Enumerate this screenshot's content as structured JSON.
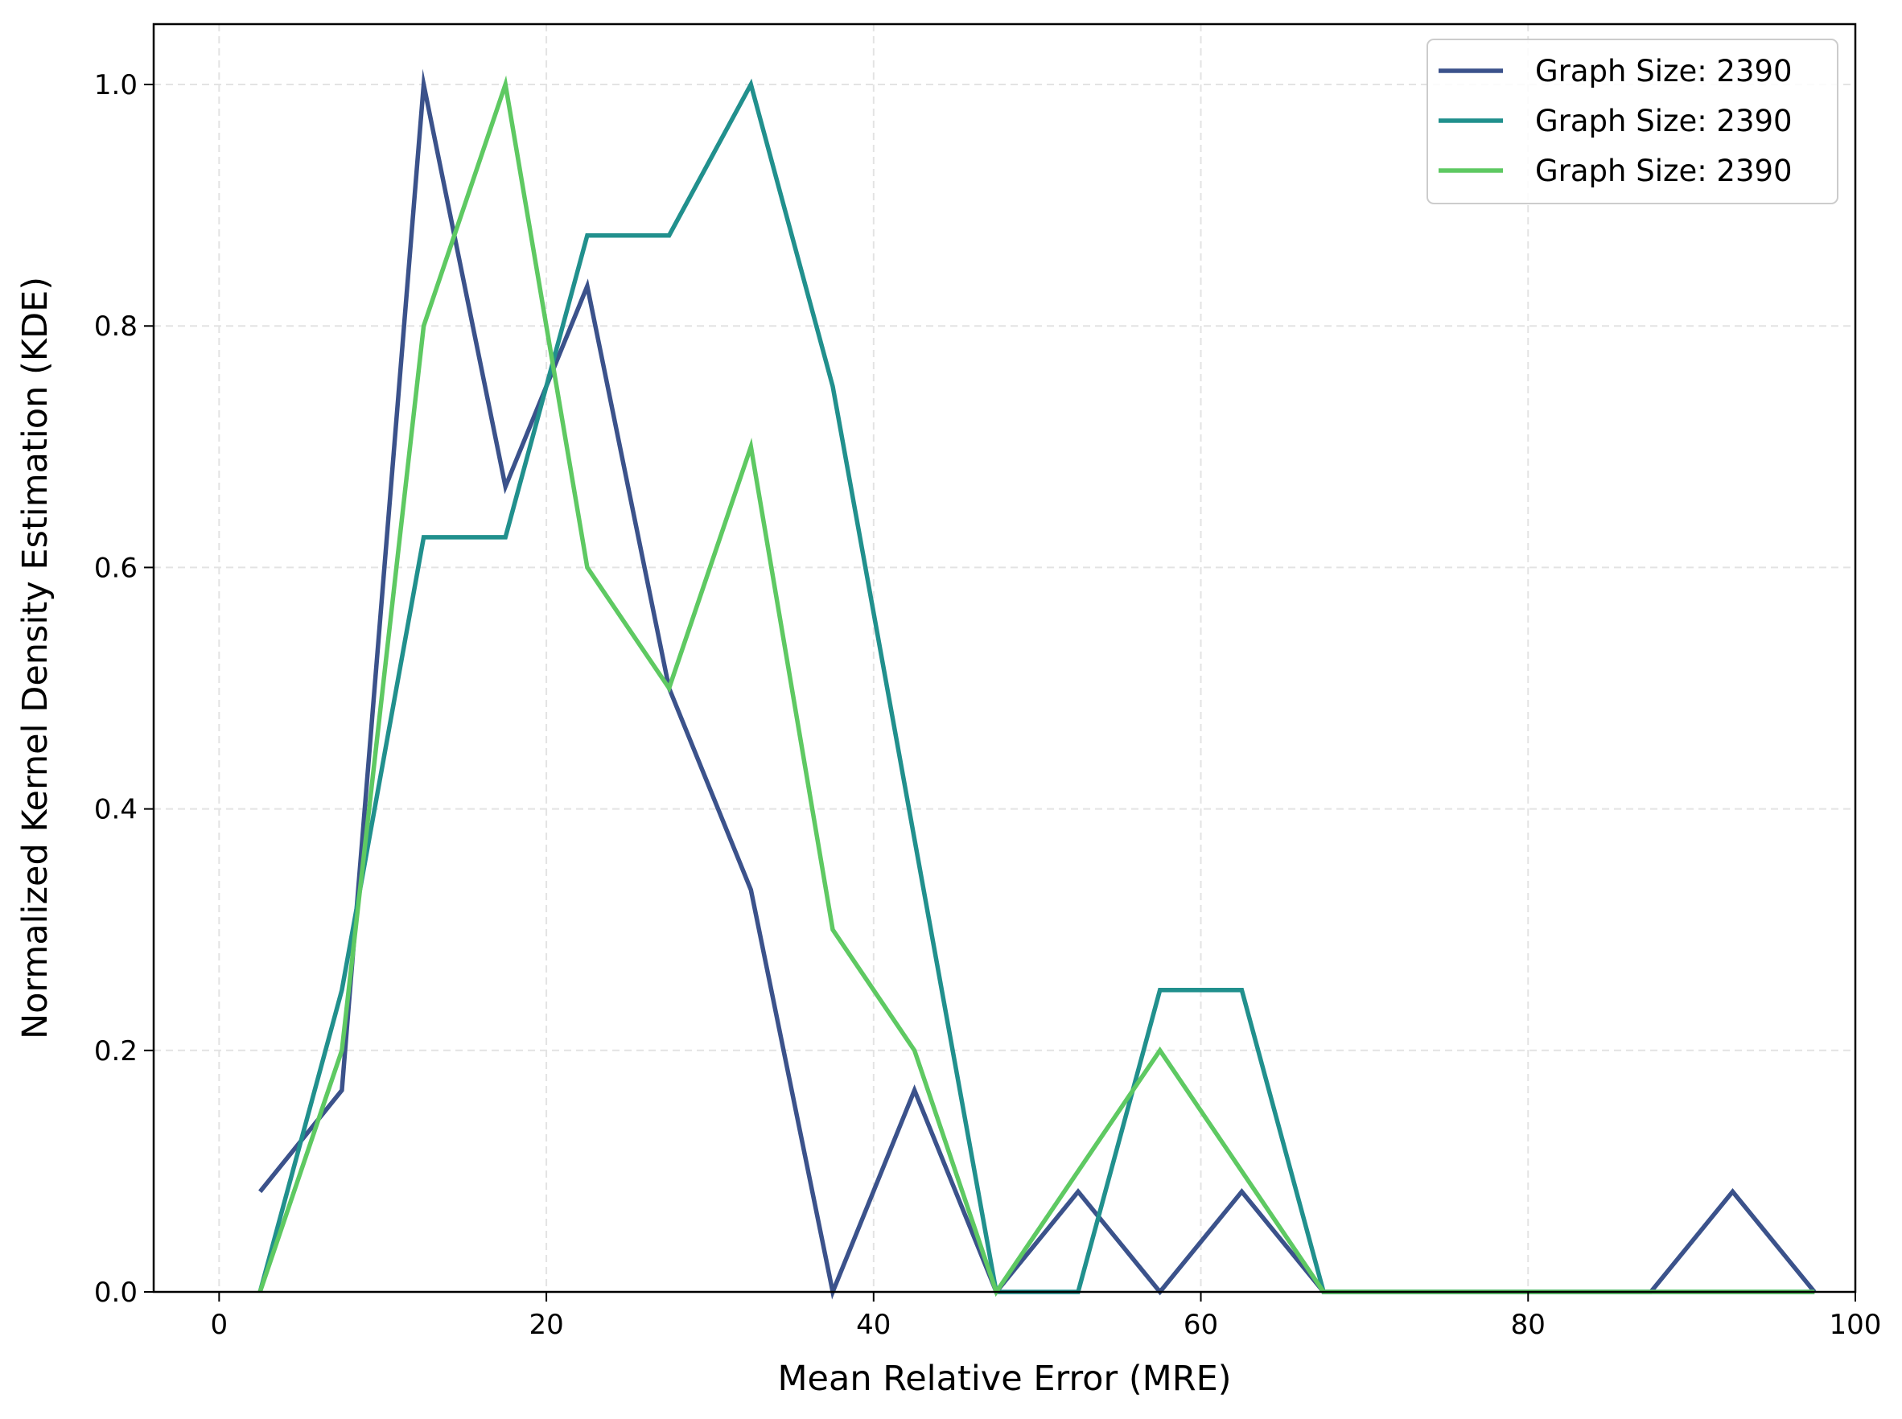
{
  "chart_data": {
    "type": "line",
    "title": "",
    "xlabel": "Mean Relative Error (MRE)",
    "ylabel": "Normalized Kernel Density Estimation (KDE)",
    "xlim": [
      -4,
      100
    ],
    "ylim": [
      0,
      1.05
    ],
    "xticks": [
      0,
      20,
      40,
      60,
      80,
      100
    ],
    "xtick_labels": [
      "0",
      "20",
      "40",
      "60",
      "80",
      "100"
    ],
    "yticks": [
      0.0,
      0.2,
      0.4,
      0.6,
      0.8,
      1.0
    ],
    "ytick_labels": [
      "0.0",
      "0.2",
      "0.4",
      "0.6",
      "0.8",
      "1.0"
    ],
    "grid": true,
    "legend_position": "top-right",
    "x": [
      2.5,
      7.5,
      12.5,
      17.5,
      22.5,
      27.5,
      32.5,
      37.5,
      42.5,
      47.5,
      52.5,
      57.5,
      62.5,
      67.5,
      72.5,
      77.5,
      82.5,
      87.5,
      92.5,
      97.5
    ],
    "series": [
      {
        "name": "Graph Size: 2390",
        "color": "#3b528b",
        "values": [
          0.083,
          0.167,
          1.0,
          0.667,
          0.833,
          0.5,
          0.333,
          0.0,
          0.167,
          0.0,
          0.083,
          0.0,
          0.083,
          0.0,
          0.0,
          0.0,
          0.0,
          0.0,
          0.083,
          0.0
        ]
      },
      {
        "name": "Graph Size: 2390",
        "color": "#21908d",
        "values": [
          0.0,
          0.25,
          0.625,
          0.625,
          0.875,
          0.875,
          1.0,
          0.75,
          0.375,
          0.0,
          0.0,
          0.25,
          0.25,
          0.0,
          0.0,
          0.0,
          0.0,
          0.0,
          0.0,
          0.0
        ]
      },
      {
        "name": "Graph Size: 2390",
        "color": "#5ec962",
        "values": [
          0.0,
          0.2,
          0.8,
          1.0,
          0.6,
          0.5,
          0.7,
          0.3,
          0.2,
          0.0,
          0.1,
          0.2,
          0.1,
          0.0,
          0.0,
          0.0,
          0.0,
          0.0,
          0.0,
          0.0
        ]
      }
    ]
  }
}
